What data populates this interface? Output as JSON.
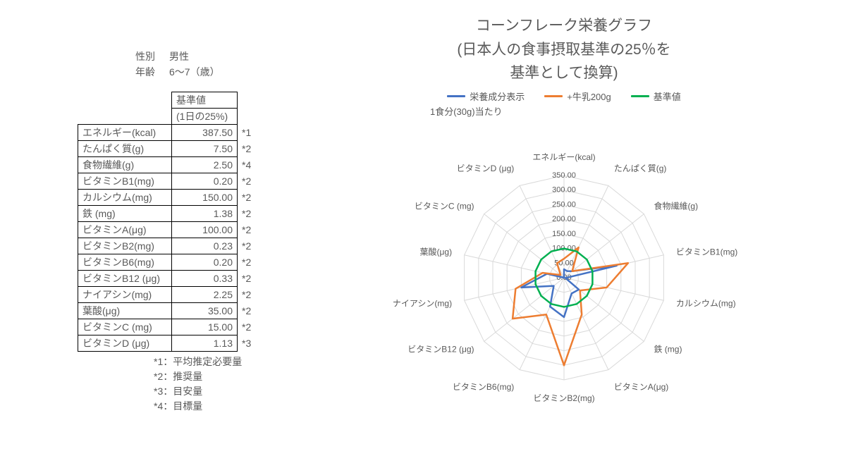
{
  "meta": {
    "gender_label": "性別",
    "gender_value": "男性",
    "age_label": "年齢",
    "age_value": "6～7（歳）"
  },
  "table": {
    "header_main": "基準値",
    "header_sub": "(1日の25%)",
    "rows": [
      {
        "name": "エネルギー(kcal)",
        "value": "387.50",
        "note": "*1"
      },
      {
        "name": "たんぱく質(g)",
        "value": "7.50",
        "note": "*2"
      },
      {
        "name": "食物繊維(g)",
        "value": "2.50",
        "note": "*4"
      },
      {
        "name": "ビタミンB1(mg)",
        "value": "0.20",
        "note": "*2"
      },
      {
        "name": "カルシウム(mg)",
        "value": "150.00",
        "note": "*2"
      },
      {
        "name": "鉄 (mg)",
        "value": "1.38",
        "note": "*2"
      },
      {
        "name": "ビタミンA(μg)",
        "value": "100.00",
        "note": "*2"
      },
      {
        "name": "ビタミンB2(mg)",
        "value": "0.23",
        "note": "*2"
      },
      {
        "name": "ビタミンB6(mg)",
        "value": "0.20",
        "note": "*2"
      },
      {
        "name": "ビタミンB12 (μg)",
        "value": "0.33",
        "note": "*2"
      },
      {
        "name": "ナイアシン(mg)",
        "value": "2.25",
        "note": "*2"
      },
      {
        "name": "葉酸(μg)",
        "value": "35.00",
        "note": "*2"
      },
      {
        "name": "ビタミンC (mg)",
        "value": "15.00",
        "note": "*2"
      },
      {
        "name": "ビタミンD (μg)",
        "value": "1.13",
        "note": "*3"
      }
    ]
  },
  "footnotes": [
    "*1：平均推定必要量",
    "*2：推奨量",
    "*3：目安量",
    "*4：目標量"
  ],
  "chart": {
    "type": "radar",
    "title_line1": "コーンフレーク栄養グラフ",
    "title_line2": "(日本人の食事摂取基準の25％を",
    "title_line3": "基準として換算)",
    "serving": "1食分(30g)当たり",
    "legend": [
      {
        "label": "栄養成分表示",
        "color": "#4472c4"
      },
      {
        "label": "+牛乳200g",
        "color": "#ed7d31"
      },
      {
        "label": "基準値",
        "color": "#00b050"
      }
    ],
    "axes": [
      "エネルギー(kcal)",
      "たんぱく質(g)",
      "食物繊維(g)",
      "ビタミンB1(mg)",
      "カルシウム(mg)",
      "鉄 (mg)",
      "ビタミンA(μg)",
      "ビタミンB2(mg)",
      "ビタミンB6(mg)",
      "ビタミンB12 (μg)",
      "ナイアシン(mg)",
      "葉酸(μg)",
      "ビタミンC (mg)",
      "ビタミンD (μg)"
    ],
    "ticks": [
      "0.00",
      "50.00",
      "100.00",
      "150.00",
      "200.00",
      "250.00",
      "300.00",
      "350.00"
    ],
    "max": 350,
    "tick_step": 50,
    "gridline_color": "#d9d9d9",
    "gridline_width": 1,
    "background_color": "#ffffff",
    "label_fontsize": 12,
    "tick_fontsize": 11,
    "title_fontsize": 21,
    "line_width": 2.5,
    "series": {
      "display": [
        29,
        25,
        36,
        185,
        5,
        65,
        60,
        135,
        110,
        45,
        150,
        60,
        0,
        0
      ],
      "milk": [
        65,
        115,
        36,
        225,
        150,
        70,
        140,
        300,
        140,
        225,
        170,
        75,
        15,
        55
      ],
      "standard": [
        100,
        100,
        100,
        100,
        100,
        100,
        100,
        100,
        100,
        100,
        100,
        100,
        100,
        100
      ]
    }
  }
}
